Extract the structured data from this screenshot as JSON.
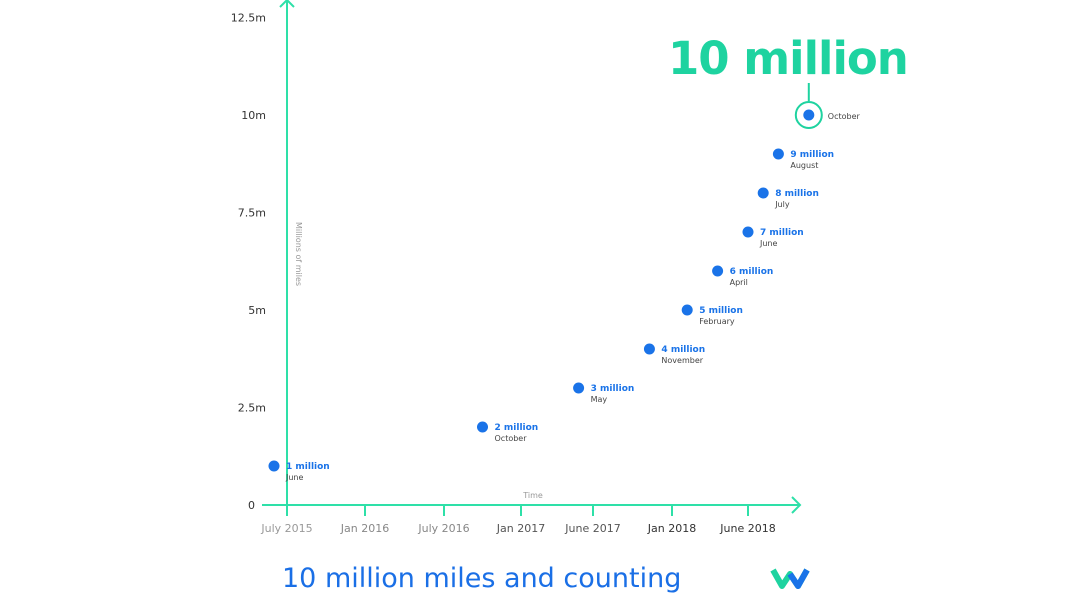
{
  "chart_data": {
    "type": "scatter",
    "title": "10 million miles and counting",
    "highlight": "10 million",
    "xlabel": "Time",
    "ylabel": "Millions of miles",
    "yticks": [
      "0",
      "2.5m",
      "5m",
      "7.5m",
      "10m",
      "12.5m"
    ],
    "ytick_values": [
      0,
      2.5,
      5,
      7.5,
      10,
      12.5
    ],
    "ylim": [
      0,
      12.5
    ],
    "xticks": [
      "July 2015",
      "Jan 2016",
      "July 2016",
      "Jan 2017",
      "June 2017",
      "Jan 2018",
      "June 2018"
    ],
    "xtick_dates": [
      "2015-07",
      "2016-01",
      "2016-07",
      "2017-01",
      "2017-06",
      "2018-01",
      "2018-06"
    ],
    "points": [
      {
        "date": "2015-06",
        "value": 1,
        "label": "1 million",
        "month": "June"
      },
      {
        "date": "2016-10",
        "value": 2,
        "label": "2 million",
        "month": "October"
      },
      {
        "date": "2017-05",
        "value": 3,
        "label": "3 million",
        "month": "May"
      },
      {
        "date": "2017-11",
        "value": 4,
        "label": "4 million",
        "month": "November"
      },
      {
        "date": "2018-02",
        "value": 5,
        "label": "5 million",
        "month": "February"
      },
      {
        "date": "2018-04",
        "value": 6,
        "label": "6 million",
        "month": "April"
      },
      {
        "date": "2018-06",
        "value": 7,
        "label": "7 million",
        "month": "June"
      },
      {
        "date": "2018-07",
        "value": 8,
        "label": "8 million",
        "month": "July"
      },
      {
        "date": "2018-08",
        "value": 9,
        "label": "9 million",
        "month": "August"
      },
      {
        "date": "2018-10",
        "value": 10,
        "label": "",
        "month": "October"
      }
    ],
    "colors": {
      "axis": "#2ee0a8",
      "point": "#1a73e8",
      "highlight": "#1ed3a0",
      "title": "#1a6fe6"
    },
    "grid": false
  },
  "logo": "Waymo"
}
